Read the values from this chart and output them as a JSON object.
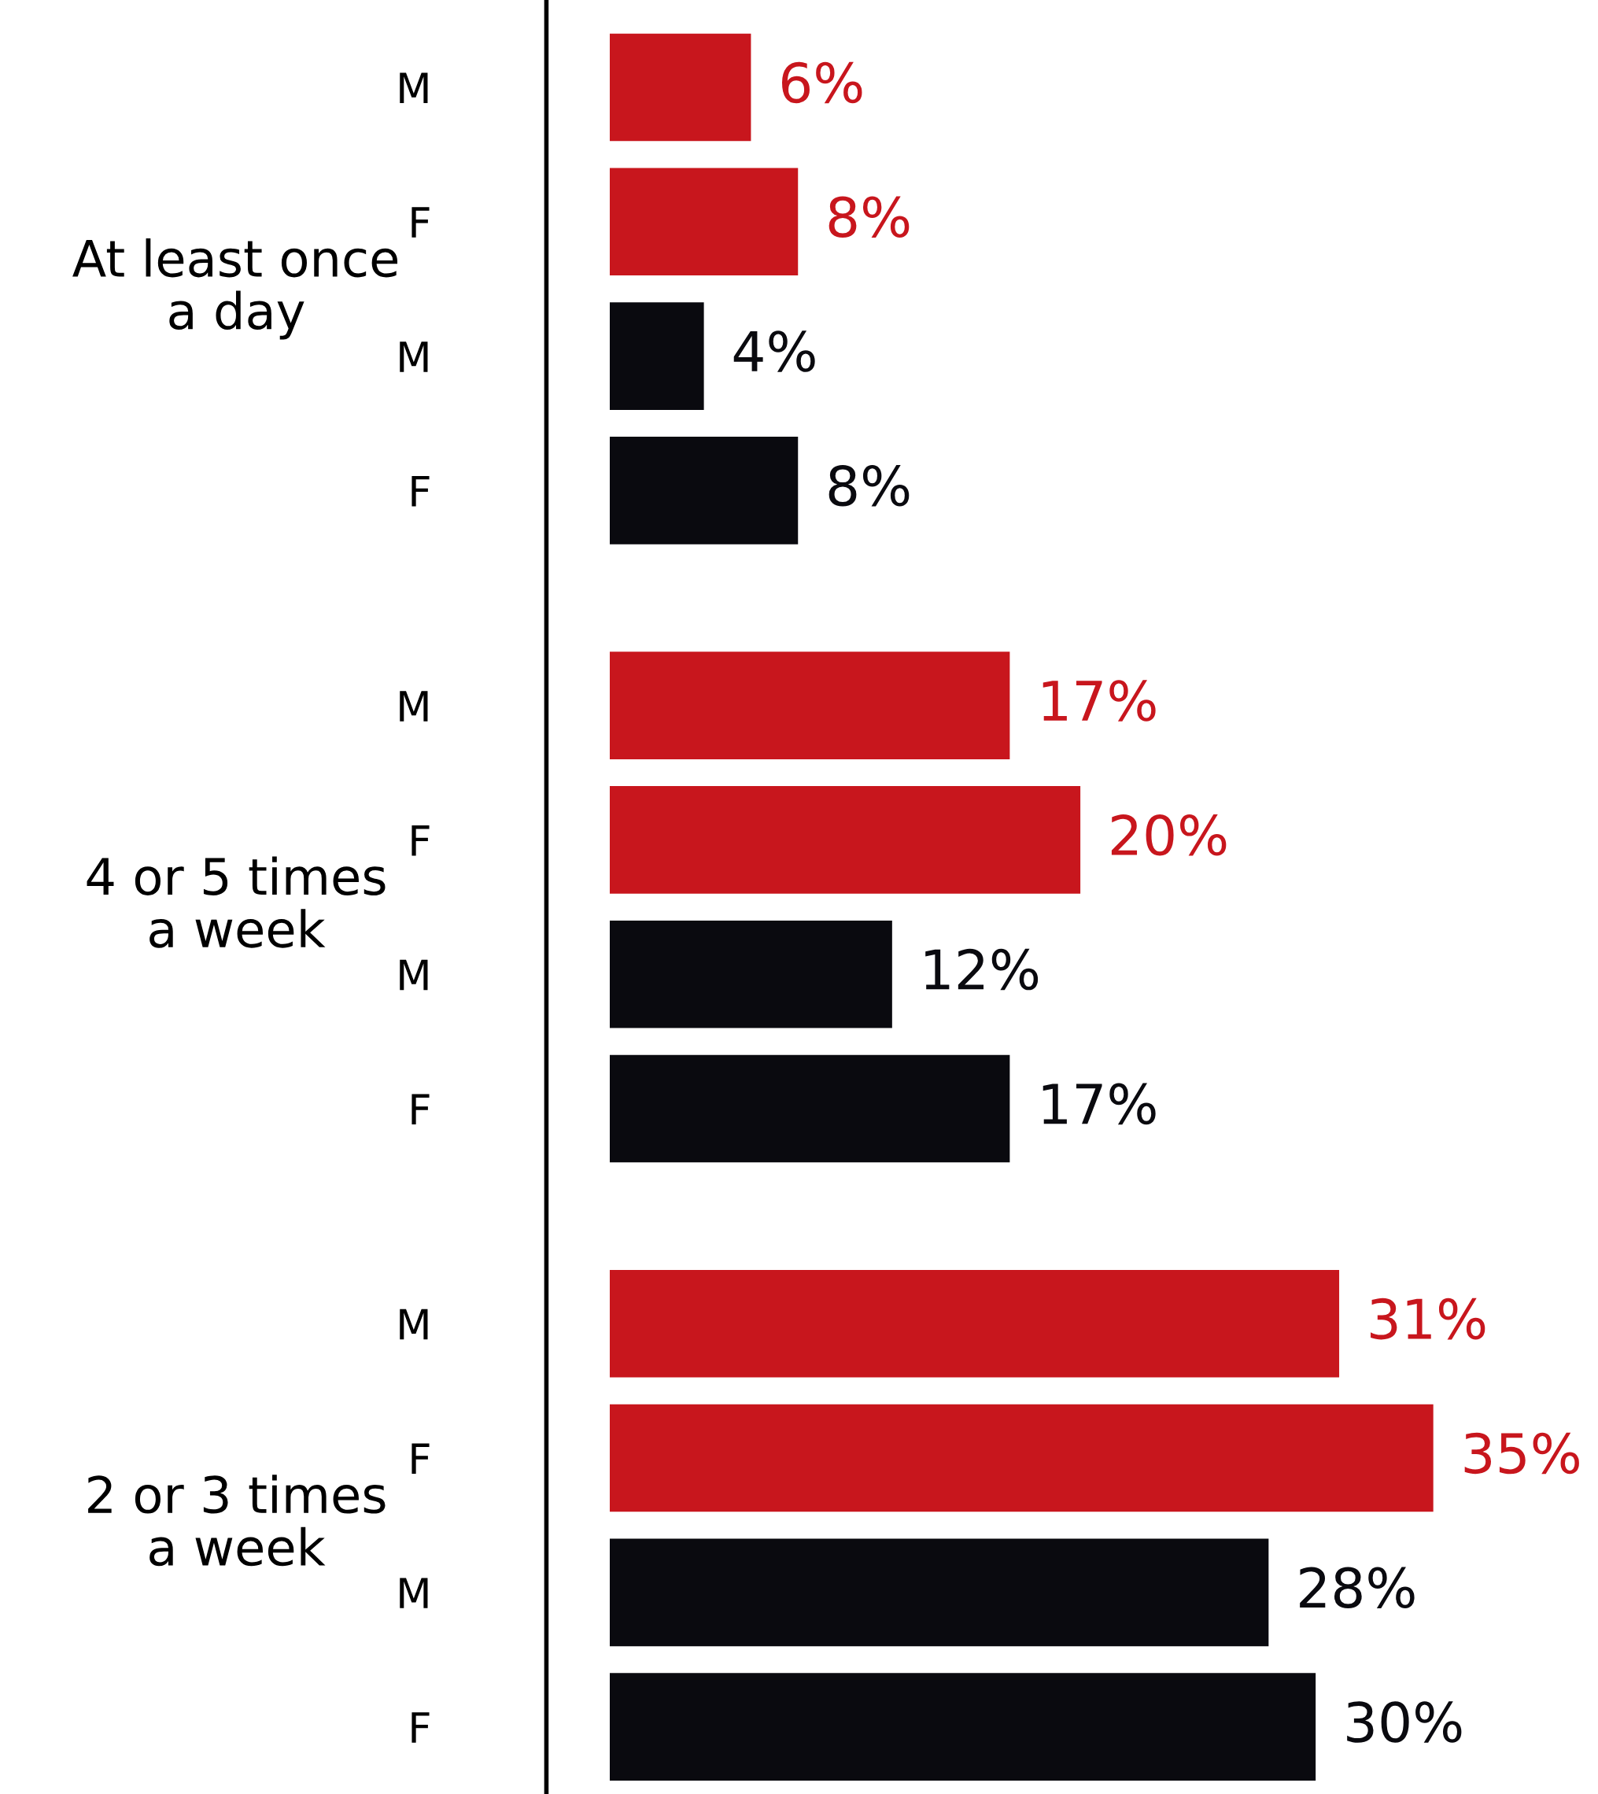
{
  "chart_data": {
    "type": "bar",
    "orientation": "horizontal",
    "categories": [
      "M",
      "F",
      "M",
      "F",
      "M",
      "F",
      "M",
      "F",
      "M",
      "F",
      "M",
      "F"
    ],
    "values": [
      6,
      8,
      4,
      8,
      17,
      20,
      12,
      17,
      31,
      35,
      28,
      30
    ],
    "colors": [
      "#c8161d",
      "#c8161d",
      "#0a0a0f",
      "#0a0a0f",
      "#c8161d",
      "#c8161d",
      "#0a0a0f",
      "#0a0a0f",
      "#c8161d",
      "#c8161d",
      "#0a0a0f",
      "#0a0a0f"
    ],
    "value_labels": [
      "6%",
      "8%",
      "4%",
      "8%",
      "17%",
      "20%",
      "12%",
      "17%",
      "31%",
      "35%",
      "28%",
      "30%"
    ],
    "annotations": [
      "At least once\na day",
      "4 or 5 times\na week",
      "2 or 3 times\na week"
    ],
    "grid": false,
    "legend": false
  }
}
